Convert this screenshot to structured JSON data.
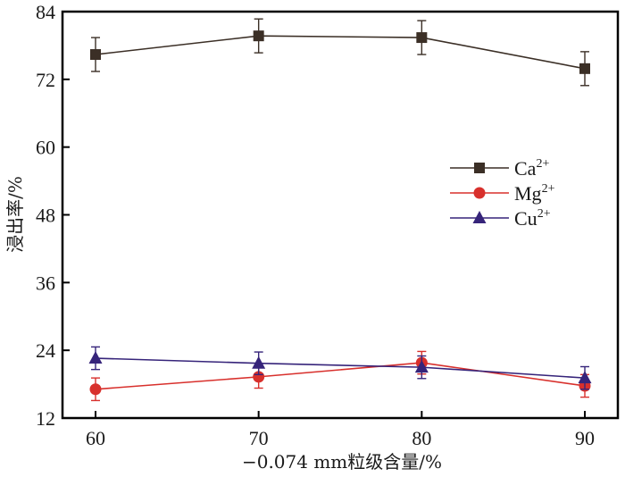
{
  "chart_data": {
    "type": "line",
    "title": "",
    "xlabel": "−0.074 mm粒级含量/%",
    "ylabel": "浸出率/%",
    "x": [
      60,
      70,
      80,
      90
    ],
    "xlim": [
      57.3,
      91.8
    ],
    "ylim": [
      12,
      84
    ],
    "xticks": [
      "60",
      "70",
      "80",
      "90"
    ],
    "xtick_values": [
      60,
      70,
      80,
      90
    ],
    "yticks": [
      "12",
      "24",
      "36",
      "48",
      "60",
      "72",
      "84"
    ],
    "ytick_values": [
      12,
      24,
      36,
      48,
      60,
      72,
      84
    ],
    "grid": false,
    "legend_position": "center-right",
    "series": [
      {
        "name": "Ca",
        "sup": "2+",
        "marker": "square",
        "color": "#3b2f26",
        "values": [
          76.4,
          79.7,
          79.4,
          73.9
        ],
        "errors": [
          3.0,
          3.0,
          3.0,
          3.0
        ]
      },
      {
        "name": "Mg",
        "sup": "2+",
        "marker": "circle",
        "color": "#d8302c",
        "values": [
          17.1,
          19.3,
          21.8,
          17.7
        ],
        "errors": [
          2.0,
          2.0,
          2.0,
          2.0
        ]
      },
      {
        "name": "Cu",
        "sup": "2+",
        "marker": "triangle",
        "color": "#36247a",
        "values": [
          22.6,
          21.7,
          21.0,
          19.1
        ],
        "errors": [
          2.0,
          2.0,
          2.0,
          2.0
        ]
      }
    ]
  }
}
